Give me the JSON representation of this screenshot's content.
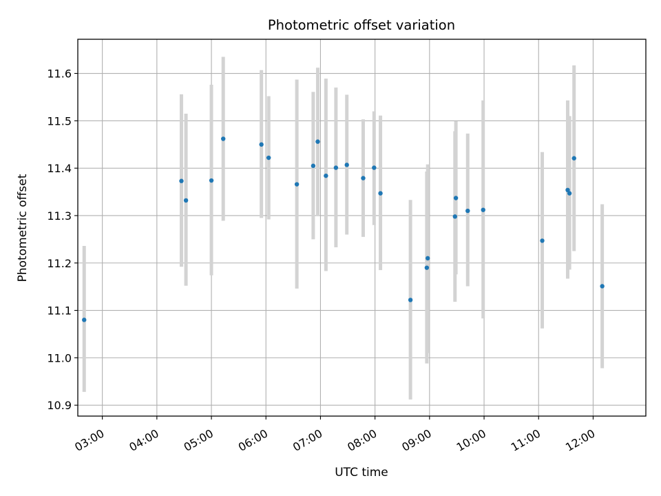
{
  "chart_data": {
    "type": "scatter",
    "title": "Photometric offset variation",
    "xlabel": "UTC time",
    "ylabel": "Photometric offset",
    "x_tick_labels": [
      "03:00",
      "04:00",
      "05:00",
      "06:00",
      "07:00",
      "08:00",
      "09:00",
      "10:00",
      "11:00",
      "12:00"
    ],
    "y_tick_labels": [
      "10.9",
      "11.0",
      "11.1",
      "11.2",
      "11.3",
      "11.4",
      "11.5",
      "11.6"
    ],
    "xlim": [
      "02:33",
      "12:58"
    ],
    "ylim": [
      10.877,
      11.672
    ],
    "grid": true,
    "colors": {
      "point": "#1f77b4",
      "errorbar": "#d3d3d3",
      "grid": "#b0b0b0"
    },
    "points": [
      {
        "t": "02:40",
        "y": 11.08,
        "err_low": 10.928,
        "err_high": 11.236
      },
      {
        "t": "04:27",
        "y": 11.373,
        "err_low": 11.192,
        "err_high": 11.556
      },
      {
        "t": "04:32",
        "y": 11.332,
        "err_low": 11.152,
        "err_high": 11.515
      },
      {
        "t": "05:00",
        "y": 11.374,
        "err_low": 11.174,
        "err_high": 11.576
      },
      {
        "t": "05:13",
        "y": 11.462,
        "err_low": 11.289,
        "err_high": 11.635
      },
      {
        "t": "05:55",
        "y": 11.45,
        "err_low": 11.295,
        "err_high": 11.607
      },
      {
        "t": "06:03",
        "y": 11.422,
        "err_low": 11.292,
        "err_high": 11.552
      },
      {
        "t": "06:34",
        "y": 11.366,
        "err_low": 11.146,
        "err_high": 11.587
      },
      {
        "t": "06:52",
        "y": 11.405,
        "err_low": 11.25,
        "err_high": 11.561
      },
      {
        "t": "06:57",
        "y": 11.456,
        "err_low": 11.3,
        "err_high": 11.612
      },
      {
        "t": "07:06",
        "y": 11.384,
        "err_low": 11.183,
        "err_high": 11.589
      },
      {
        "t": "07:17",
        "y": 11.401,
        "err_low": 11.233,
        "err_high": 11.57
      },
      {
        "t": "07:29",
        "y": 11.407,
        "err_low": 11.26,
        "err_high": 11.555
      },
      {
        "t": "07:47",
        "y": 11.379,
        "err_low": 11.255,
        "err_high": 11.503
      },
      {
        "t": "07:59",
        "y": 11.401,
        "err_low": 11.28,
        "err_high": 11.52
      },
      {
        "t": "08:06",
        "y": 11.347,
        "err_low": 11.185,
        "err_high": 11.511
      },
      {
        "t": "08:39",
        "y": 11.122,
        "err_low": 10.912,
        "err_high": 11.333
      },
      {
        "t": "08:57",
        "y": 11.19,
        "err_low": 10.988,
        "err_high": 11.393
      },
      {
        "t": "08:58",
        "y": 11.21,
        "err_low": 11.01,
        "err_high": 11.408
      },
      {
        "t": "09:28",
        "y": 11.298,
        "err_low": 11.118,
        "err_high": 11.478
      },
      {
        "t": "09:29",
        "y": 11.337,
        "err_low": 11.176,
        "err_high": 11.499
      },
      {
        "t": "09:42",
        "y": 11.31,
        "err_low": 11.151,
        "err_high": 11.473
      },
      {
        "t": "09:59",
        "y": 11.312,
        "err_low": 11.083,
        "err_high": 11.543
      },
      {
        "t": "11:04",
        "y": 11.247,
        "err_low": 11.062,
        "err_high": 11.434
      },
      {
        "t": "11:32",
        "y": 11.354,
        "err_low": 11.167,
        "err_high": 11.543
      },
      {
        "t": "11:34",
        "y": 11.347,
        "err_low": 11.186,
        "err_high": 11.51
      },
      {
        "t": "11:39",
        "y": 11.421,
        "err_low": 11.225,
        "err_high": 11.617
      },
      {
        "t": "12:10",
        "y": 11.151,
        "err_low": 10.978,
        "err_high": 11.324
      }
    ]
  }
}
